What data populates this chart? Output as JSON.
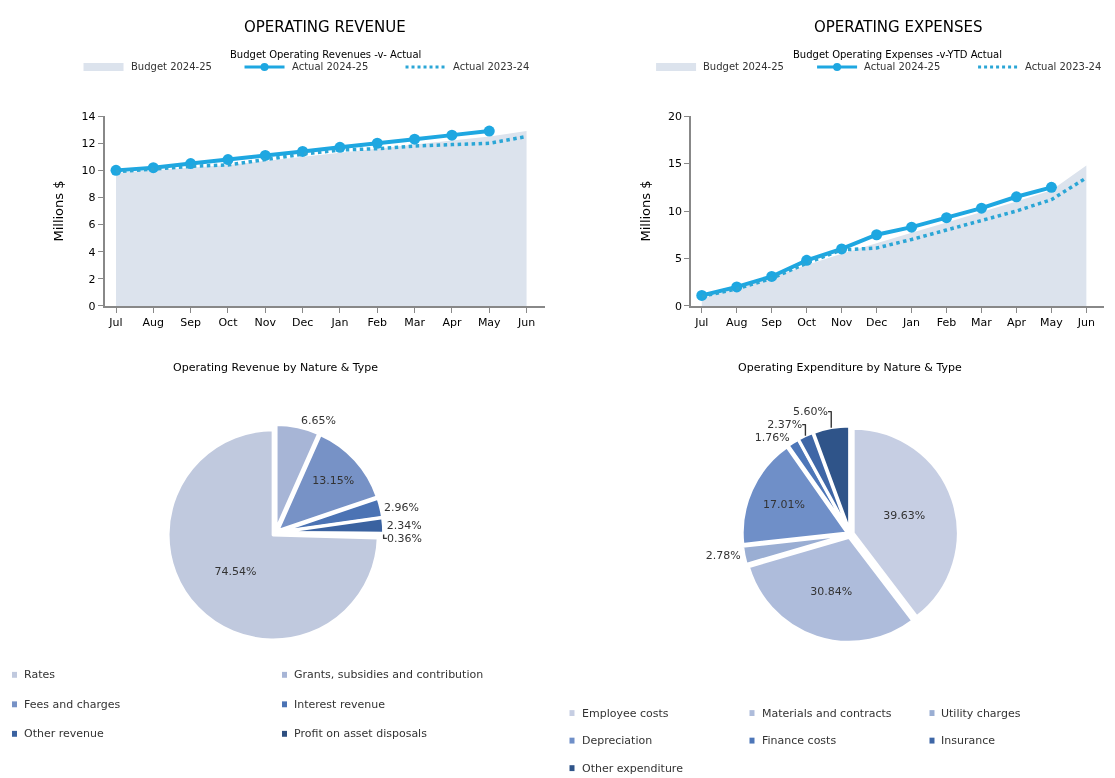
{
  "chart_data": [
    {
      "type": "line",
      "title": "OPERATING REVENUE",
      "subtitle": "Budget Operating Revenues -v- Actual",
      "ylabel": "Millions $",
      "categories": [
        "Jul",
        "Aug",
        "Sep",
        "Oct",
        "Nov",
        "Dec",
        "Jan",
        "Feb",
        "Mar",
        "Apr",
        "May",
        "Jun"
      ],
      "series": [
        {
          "name": "Budget 2024-25",
          "type": "area",
          "color": "#dce3ed",
          "values": [
            9.8,
            10.0,
            10.2,
            10.4,
            10.7,
            11.0,
            11.3,
            11.6,
            11.9,
            12.2,
            12.5,
            12.9
          ]
        },
        {
          "name": "Actual 2024-25",
          "type": "line",
          "color": "#1ea7e1",
          "marker": "circle",
          "line_style": "solid",
          "values": [
            10.0,
            10.2,
            10.5,
            10.8,
            11.1,
            11.4,
            11.7,
            12.0,
            12.3,
            12.6,
            12.9,
            null
          ]
        },
        {
          "name": "Actual 2023-24",
          "type": "line",
          "color": "#2ba6d6",
          "marker": "none",
          "line_style": "dotted",
          "values": [
            9.9,
            10.1,
            10.3,
            10.4,
            10.8,
            11.2,
            11.5,
            11.6,
            11.8,
            11.9,
            12.0,
            12.5
          ]
        }
      ],
      "ylim": [
        0,
        14
      ],
      "yticks": [
        0,
        2,
        4,
        6,
        8,
        10,
        12,
        14
      ],
      "legend": "top"
    },
    {
      "type": "line",
      "title": "OPERATING EXPENSES",
      "subtitle": "Budget Operating Expenses -v-YTD Actual",
      "ylabel": "Millions $",
      "categories": [
        "Jul",
        "Aug",
        "Sep",
        "Oct",
        "Nov",
        "Dec",
        "Jan",
        "Feb",
        "Mar",
        "Apr",
        "May",
        "Jun"
      ],
      "series": [
        {
          "name": "Budget 2024-25",
          "type": "area",
          "color": "#dce3ed",
          "values": [
            0.8,
            1.8,
            3.0,
            4.3,
            5.5,
            6.6,
            7.7,
            8.8,
            9.9,
            11.0,
            12.2,
            14.8
          ]
        },
        {
          "name": "Actual 2024-25",
          "type": "line",
          "color": "#1ea7e1",
          "marker": "circle",
          "line_style": "solid",
          "values": [
            1.1,
            2.0,
            3.1,
            4.8,
            6.0,
            7.5,
            8.3,
            9.3,
            10.3,
            11.5,
            12.5,
            null
          ]
        },
        {
          "name": "Actual 2023-24",
          "type": "line",
          "color": "#2ba6d6",
          "marker": "none",
          "line_style": "dotted",
          "values": [
            1.0,
            1.8,
            2.9,
            4.5,
            5.9,
            6.1,
            7.0,
            8.0,
            9.0,
            10.0,
            11.2,
            13.5
          ]
        }
      ],
      "ylim": [
        0,
        20
      ],
      "yticks": [
        0,
        5,
        10,
        15,
        20
      ],
      "legend": "top"
    },
    {
      "type": "pie",
      "title": "Operating Revenue by Nature & Type",
      "categories": [
        "Rates",
        "Grants, subsidies and contribution",
        "Fees and charges",
        "Interest revenue",
        "Other revenue",
        "Profit on asset disposals"
      ],
      "values": [
        74.54,
        6.65,
        13.15,
        2.96,
        2.34,
        0.36
      ],
      "value_labels": [
        "74.54%",
        "6.65%",
        "13.15%",
        "2.96%",
        "2.34%",
        "0.36%"
      ],
      "colors": [
        "#c0c9de",
        "#a7b5d6",
        "#7792c6",
        "#4b73b4",
        "#3a62a0",
        "#2f4f80"
      ],
      "legend": "bottom"
    },
    {
      "type": "pie",
      "title": "Operating Expenditure by Nature & Type",
      "categories": [
        "Employee costs",
        "Materials and contracts",
        "Utility charges",
        "Depreciation",
        "Finance costs",
        "Insurance",
        "Other expenditure"
      ],
      "values": [
        39.63,
        30.84,
        2.78,
        17.01,
        1.76,
        2.37,
        5.6
      ],
      "value_labels": [
        "39.63%",
        "30.84%",
        "2.78%",
        "17.01%",
        "1.76%",
        "2.37%",
        "5.60%"
      ],
      "colors": [
        "#c6cee3",
        "#aebcdb",
        "#9aaed3",
        "#6f8fc8",
        "#4d76b8",
        "#3e66a6",
        "#2f5489"
      ],
      "legend": "bottom"
    }
  ]
}
